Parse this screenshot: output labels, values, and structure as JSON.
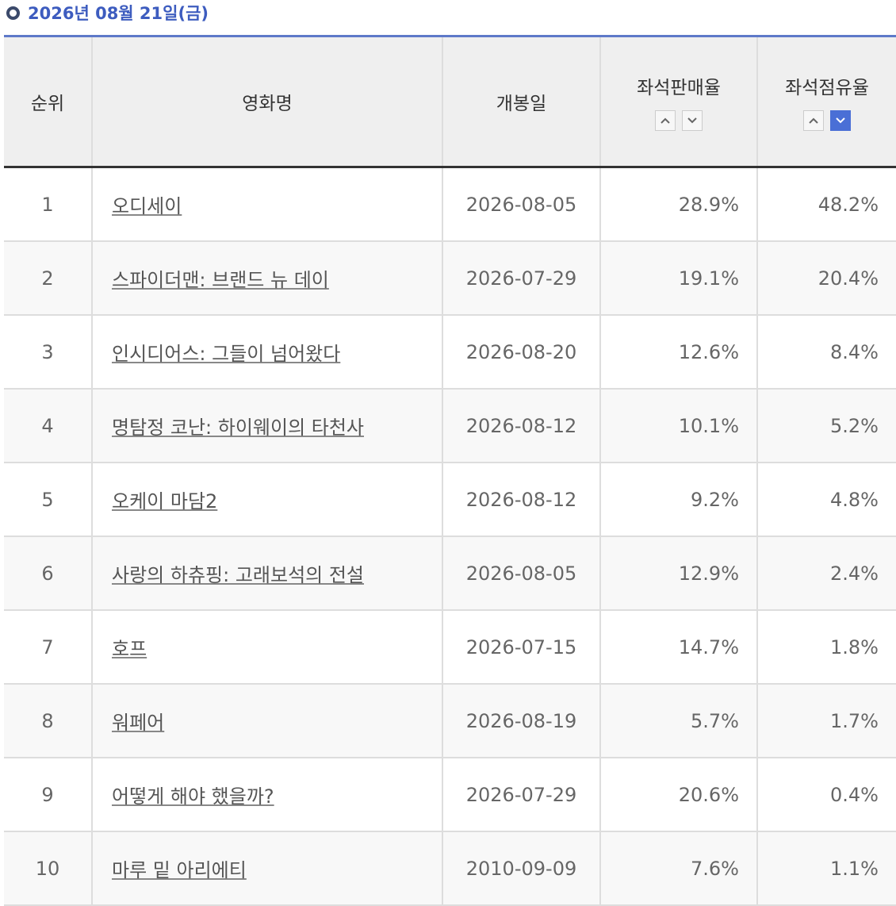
{
  "header": {
    "date": "2026년 08월 21일(금)"
  },
  "table": {
    "columns": [
      "순위",
      "영화명",
      "개봉일",
      "좌석판매율",
      "좌석점유율"
    ],
    "rows": [
      [
        "1",
        "오디세이",
        "2026-08-05",
        "28.9%",
        "48.2%"
      ],
      [
        "2",
        "스파이더맨: 브랜드 뉴 데이",
        "2026-07-29",
        "19.1%",
        "20.4%"
      ],
      [
        "3",
        "인시디어스: 그들이 넘어왔다",
        "2026-08-20",
        "12.6%",
        "8.4%"
      ],
      [
        "4",
        "명탐정 코난: 하이웨이의 타천사",
        "2026-08-12",
        "10.1%",
        "5.2%"
      ],
      [
        "5",
        "오케이 마담2",
        "2026-08-12",
        "9.2%",
        "4.8%"
      ],
      [
        "6",
        "사랑의 하츄핑: 고래보석의 전설",
        "2026-08-05",
        "12.9%",
        "2.4%"
      ],
      [
        "7",
        "호프",
        "2026-07-15",
        "14.7%",
        "1.8%"
      ],
      [
        "8",
        "워페어",
        "2026-08-19",
        "5.7%",
        "1.7%"
      ],
      [
        "9",
        "어떻게 해야 했을까?",
        "2026-07-29",
        "20.6%",
        "0.4%"
      ],
      [
        "10",
        "마루 밑 아리에티",
        "2010-09-09",
        "7.6%",
        "1.1%"
      ]
    ]
  }
}
